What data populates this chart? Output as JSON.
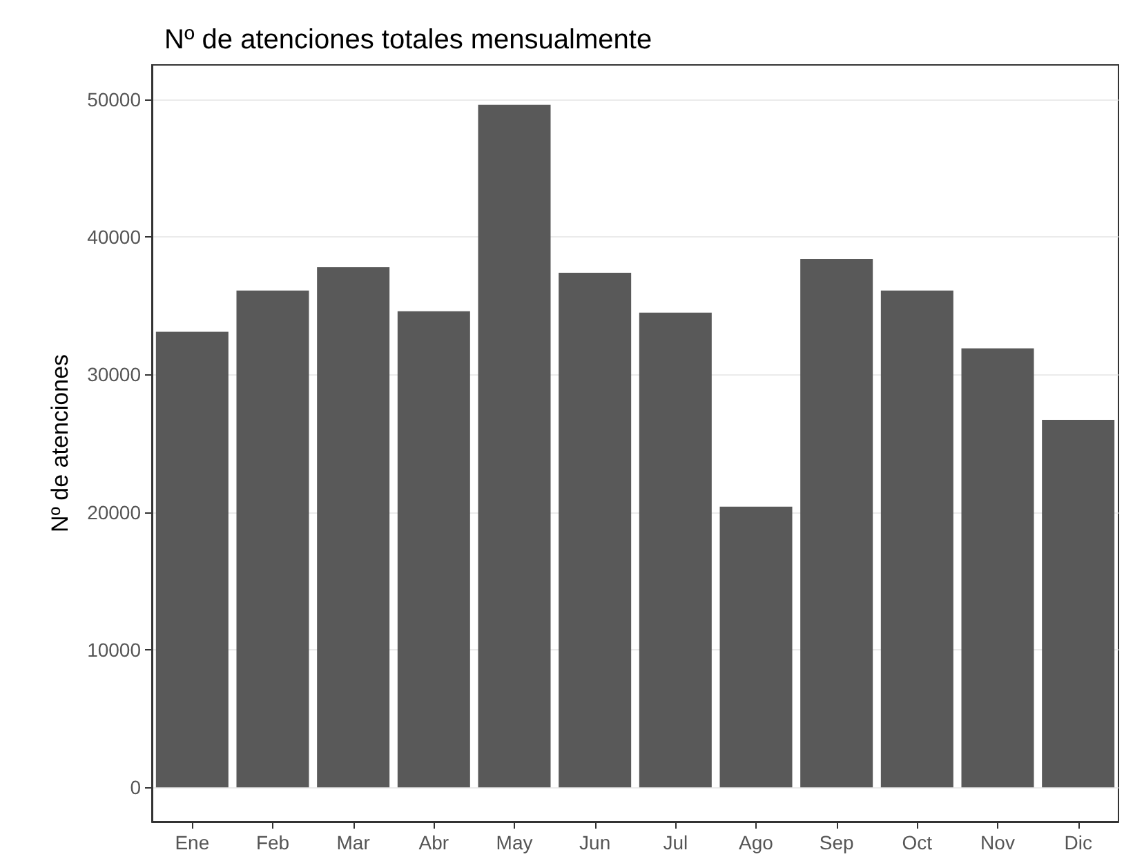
{
  "chart_data": {
    "type": "bar",
    "title": "Nº de atenciones totales mensualmente",
    "ylabel": "Nº de atenciones",
    "categories": [
      "Ene",
      "Feb",
      "Mar",
      "Abr",
      "May",
      "Jun",
      "Jul",
      "Ago",
      "Sep",
      "Oct",
      "Nov",
      "Dic"
    ],
    "values": [
      33100,
      36100,
      37800,
      34600,
      49600,
      37400,
      34500,
      20400,
      38400,
      36100,
      31900,
      26700
    ],
    "color": "#595959",
    "ylim": [
      -2500,
      52500
    ],
    "yticks": [
      0,
      10000,
      20000,
      30000,
      40000,
      50000
    ],
    "grid": "y"
  }
}
